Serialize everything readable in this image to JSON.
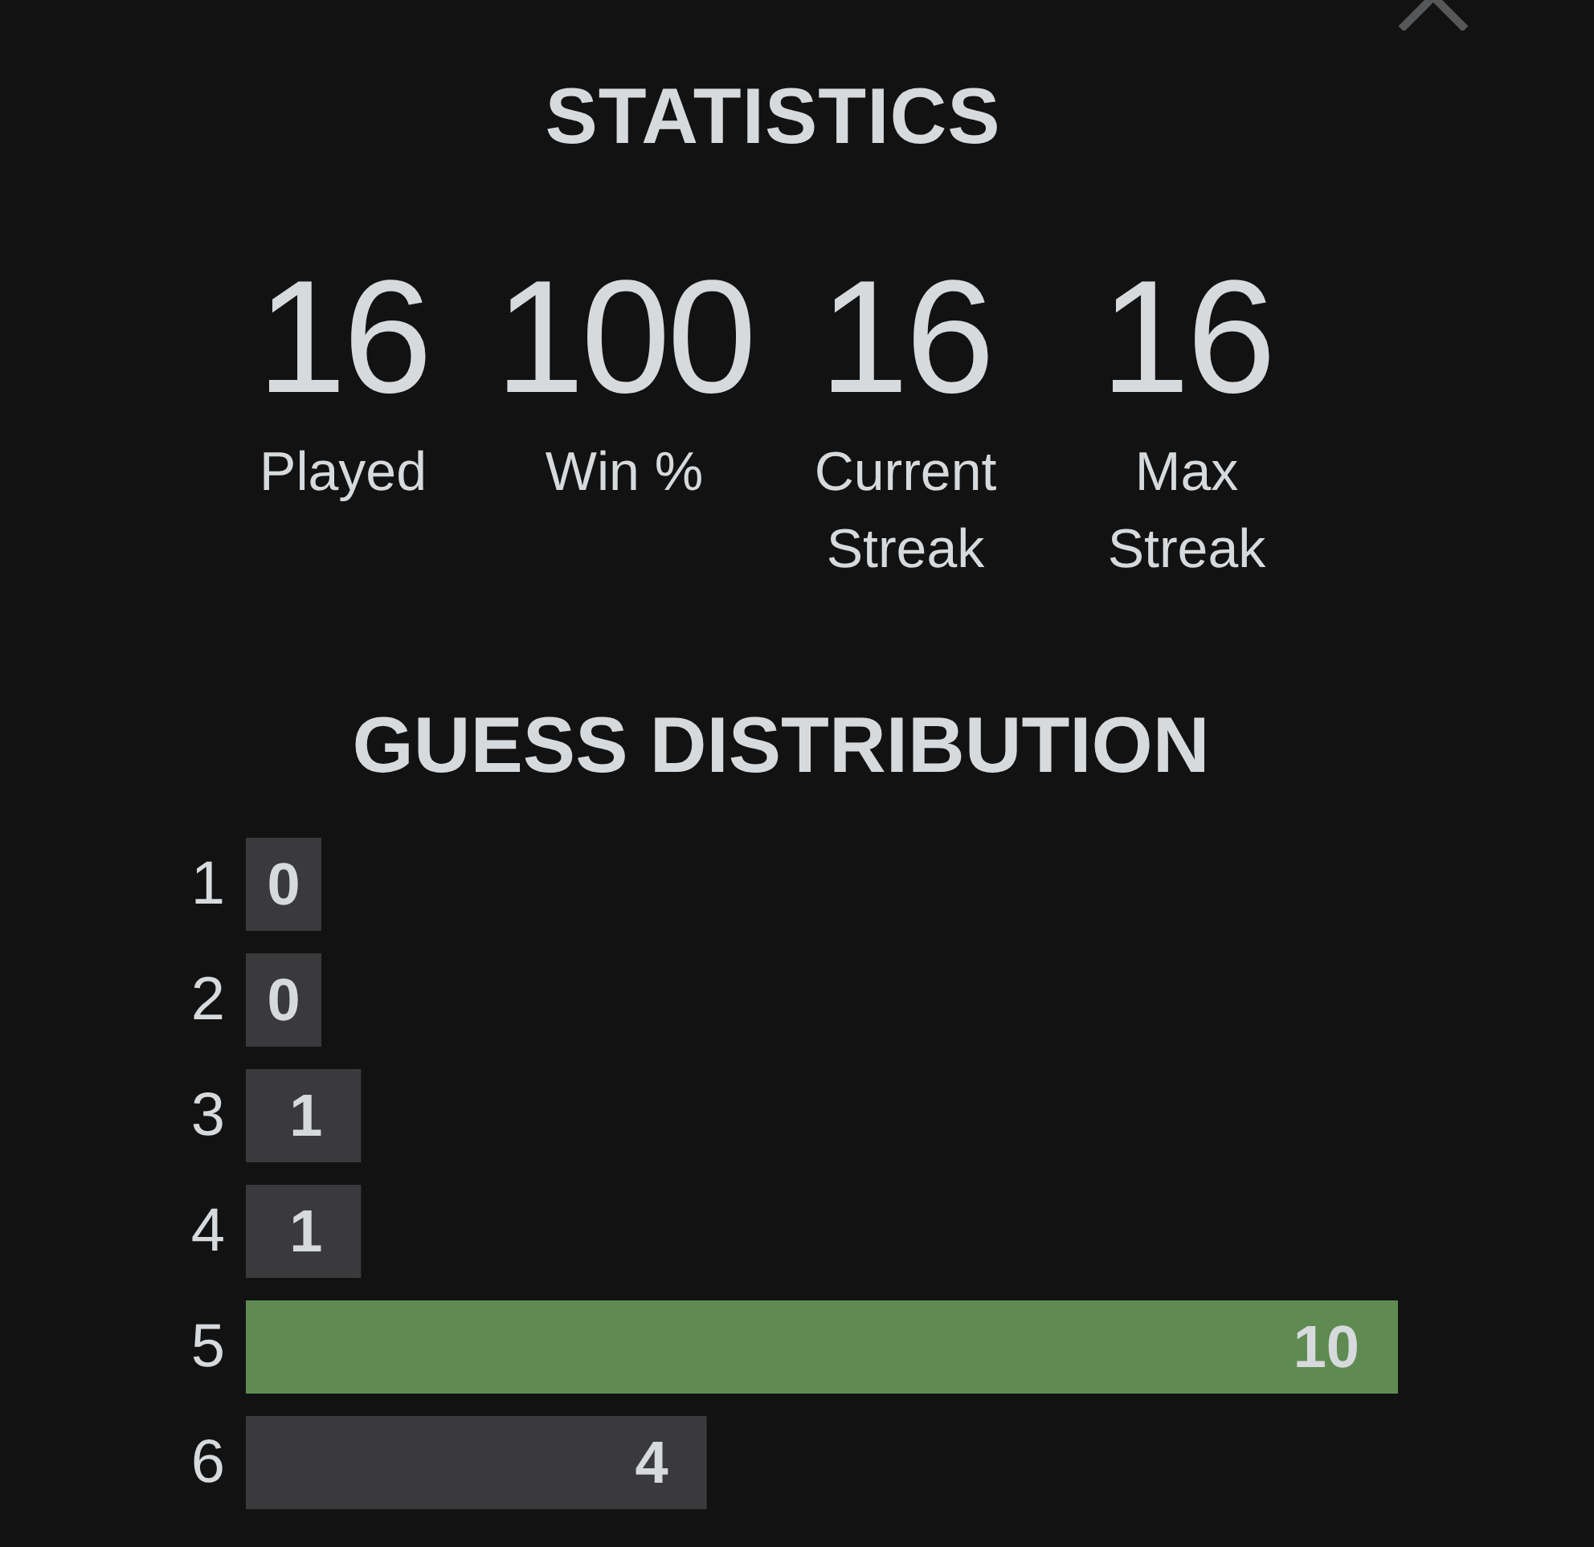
{
  "chart_data": [
    {
      "type": "other",
      "title": "STATISTICS",
      "categories": [
        "Played",
        "Win %",
        "Current Streak",
        "Max Streak"
      ],
      "values": [
        16,
        100,
        16,
        16
      ],
      "data_labels": true
    },
    {
      "type": "bar",
      "title": "GUESS DISTRIBUTION",
      "orientation": "horizontal",
      "categories": [
        "1",
        "2",
        "3",
        "4",
        "5",
        "6"
      ],
      "values": [
        0,
        0,
        1,
        1,
        10,
        4
      ],
      "colors": [
        "#3a3a3c",
        "#3a3a3c",
        "#3a3a3c",
        "#3a3a3c",
        "#5f8b53",
        "#3a3a3c"
      ],
      "xlim": [
        0,
        10
      ],
      "data_labels": true,
      "tick_labels": "y"
    }
  ]
}
